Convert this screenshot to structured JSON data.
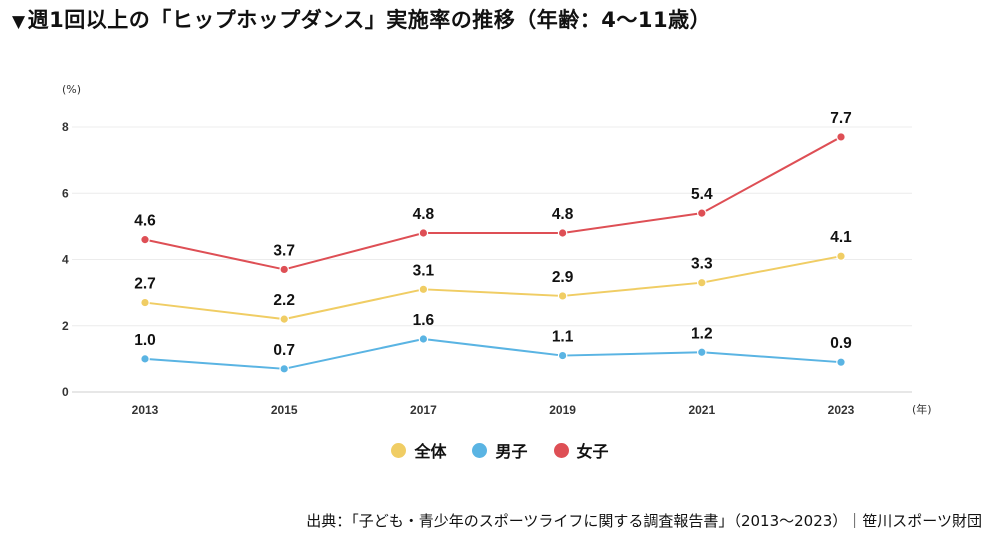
{
  "title_marker": "▼",
  "title": "週1回以上の「ヒップホップダンス」実施率の推移（年齢：4〜11歳）",
  "source": "出典：「子ども・青少年のスポーツライフに関する調査報告書」（2013〜2023）｜笹川スポーツ財団",
  "chart_data": {
    "type": "line",
    "title": "週1回以上の「ヒップホップダンス」実施率の推移（年齢：4〜11歳）",
    "xlabel": "(年)",
    "ylabel": "(%)",
    "categories": [
      "2013",
      "2015",
      "2017",
      "2019",
      "2021",
      "2023"
    ],
    "ylim": [
      0,
      8
    ],
    "yticks": [
      0,
      2,
      4,
      6,
      8
    ],
    "grid": true,
    "legend_position": "bottom-center",
    "series": [
      {
        "name": "全体",
        "color": "#f0cd64",
        "values": [
          2.7,
          2.2,
          3.1,
          2.9,
          3.3,
          4.1
        ],
        "labels": [
          "2.7",
          "2.2",
          "3.1",
          "2.9",
          "3.3",
          "4.1"
        ]
      },
      {
        "name": "男子",
        "color": "#5ab4e3",
        "values": [
          1.0,
          0.7,
          1.6,
          1.1,
          1.2,
          0.9
        ],
        "labels": [
          "1.0",
          "0.7",
          "1.6",
          "1.1",
          "1.2",
          "0.9"
        ]
      },
      {
        "name": "女子",
        "color": "#de4f55",
        "values": [
          4.6,
          3.7,
          4.8,
          4.8,
          5.4,
          7.7
        ],
        "labels": [
          "4.6",
          "3.7",
          "4.8",
          "4.8",
          "5.4",
          "7.7"
        ]
      }
    ]
  }
}
